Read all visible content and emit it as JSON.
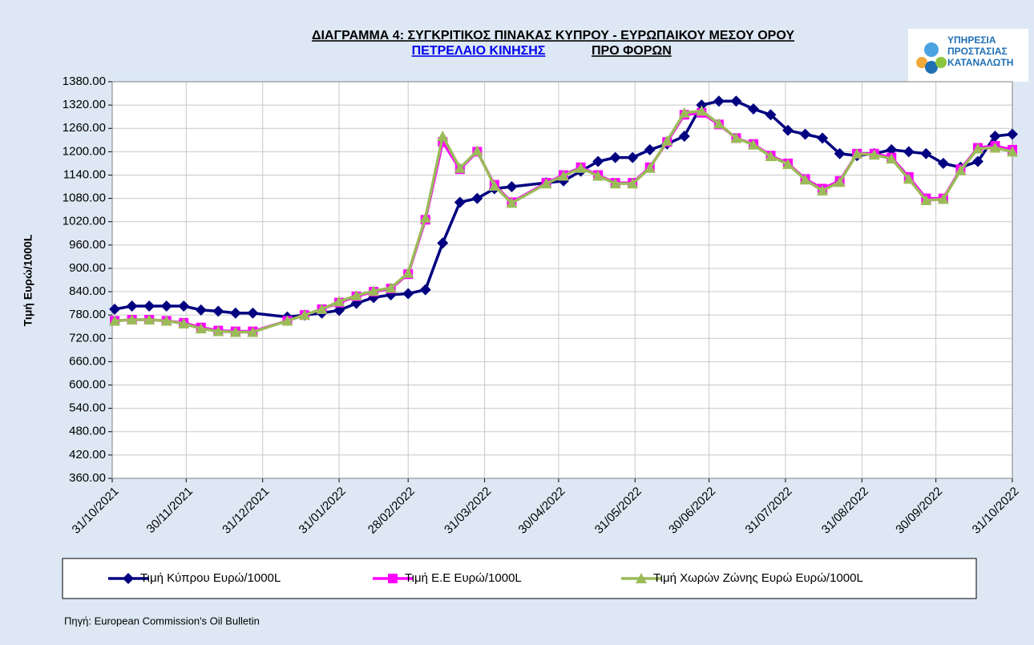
{
  "chart_data": {
    "type": "line",
    "title": "ΔΙΑΓΡΑΜΜΑ 4: ΣΥΓΚΡΙΤΙΚΟΣ ΠΙΝΑΚΑΣ ΚΥΠΡΟΥ - ΕΥΡΩΠΑΙΚΟΥ ΜΕΣΟΥ ΟΡΟΥ",
    "subtitle": [
      "ΠΕΤΡΕΛΑΙΟ ΚΙΝΗΣΗΣ",
      "ΠΡΟ ΦΟΡΩΝ"
    ],
    "ylabel": "Τιμή Ευρώ/1000L",
    "source": "Πηγή: European Commission's Oil Bulletin",
    "logo": [
      "ΥΠΗΡΕΣΙΑ",
      "ΠΡΟΣΤΑΣΙΑΣ",
      "ΚΑΤΑΝΑΛΩΤΗ"
    ],
    "x": [
      "01/11/2021",
      "08/11/2021",
      "15/11/2021",
      "22/11/2021",
      "29/11/2021",
      "06/12/2021",
      "13/12/2021",
      "20/12/2021",
      "27/12/2021",
      "10/01/2022",
      "17/01/2022",
      "24/01/2022",
      "31/01/2022",
      "07/02/2022",
      "14/02/2022",
      "21/02/2022",
      "28/02/2022",
      "07/03/2022",
      "14/03/2022",
      "21/03/2022",
      "28/03/2022",
      "04/04/2022",
      "11/04/2022",
      "25/04/2022",
      "02/05/2022",
      "09/05/2022",
      "16/05/2022",
      "23/05/2022",
      "30/05/2022",
      "06/06/2022",
      "13/06/2022",
      "20/06/2022",
      "27/06/2022",
      "04/07/2022",
      "11/07/2022",
      "18/07/2022",
      "25/07/2022",
      "01/08/2022",
      "08/08/2022",
      "15/08/2022",
      "22/08/2022",
      "29/08/2022",
      "05/09/2022",
      "12/09/2022",
      "19/09/2022",
      "26/09/2022",
      "03/10/2022",
      "10/10/2022",
      "17/10/2022",
      "24/10/2022",
      "31/10/2022"
    ],
    "series": [
      {
        "name": "Τιμή Κύπρου Ευρώ/1000L",
        "color": "#000080",
        "marker": "diamond",
        "values": [
          795,
          803,
          803,
          803,
          803,
          793,
          790,
          785,
          785,
          775,
          780,
          785,
          792,
          810,
          825,
          832,
          835,
          845,
          965,
          1070,
          1080,
          1105,
          1110,
          1120,
          1125,
          1150,
          1175,
          1185,
          1185,
          1205,
          1220,
          1240,
          1320,
          1330,
          1330,
          1310,
          1295,
          1255,
          1245,
          1235,
          1195,
          1190,
          1195,
          1205,
          1200,
          1195,
          1170,
          1160,
          1175,
          1240,
          1245
        ]
      },
      {
        "name": "Τιμή Ε.Ε Ευρώ/1000L",
        "color": "#ff00ff",
        "marker": "square",
        "values": [
          765,
          768,
          768,
          765,
          760,
          748,
          740,
          738,
          738,
          765,
          780,
          795,
          812,
          828,
          840,
          848,
          885,
          1025,
          1225,
          1155,
          1200,
          1115,
          1070,
          1120,
          1140,
          1160,
          1140,
          1120,
          1120,
          1160,
          1225,
          1295,
          1300,
          1270,
          1235,
          1220,
          1190,
          1170,
          1130,
          1105,
          1125,
          1195,
          1195,
          1185,
          1135,
          1080,
          1080,
          1155,
          1210,
          1215,
          1205
        ]
      },
      {
        "name": "Τιμή Χωρών Ζώνης Ευρώ Ευρώ/1000L",
        "color": "#9bbb59",
        "marker": "triangle",
        "values": [
          765,
          768,
          768,
          765,
          758,
          745,
          738,
          736,
          736,
          765,
          780,
          795,
          815,
          830,
          842,
          850,
          888,
          1030,
          1240,
          1158,
          1202,
          1112,
          1068,
          1118,
          1138,
          1158,
          1138,
          1118,
          1118,
          1158,
          1228,
          1300,
          1305,
          1272,
          1235,
          1218,
          1188,
          1168,
          1128,
          1100,
          1122,
          1195,
          1192,
          1182,
          1130,
          1075,
          1078,
          1152,
          1208,
          1210,
          1200
        ]
      }
    ],
    "xlim": [
      "31/10/2021",
      "31/10/2022"
    ],
    "xticks": [
      "31/10/2021",
      "30/11/2021",
      "31/12/2021",
      "31/01/2022",
      "28/02/2022",
      "31/03/2022",
      "30/04/2022",
      "31/05/2022",
      "30/06/2022",
      "31/07/2022",
      "31/08/2022",
      "30/09/2022",
      "31/10/2022"
    ],
    "ylim": [
      360,
      1380
    ],
    "yticks": [
      {
        "value": 360,
        "label": "360.00"
      },
      {
        "value": 420,
        "label": "420.00"
      },
      {
        "value": 480,
        "label": "480.00"
      },
      {
        "value": 540,
        "label": "540.00"
      },
      {
        "value": 600,
        "label": "600.00"
      },
      {
        "value": 660,
        "label": "660.00"
      },
      {
        "value": 720,
        "label": "720.00"
      },
      {
        "value": 780,
        "label": "780.00"
      },
      {
        "value": 840,
        "label": "840.00"
      },
      {
        "value": 900,
        "label": "900.00"
      },
      {
        "value": 960,
        "label": "960.00"
      },
      {
        "value": 1020,
        "label": "1020.00"
      },
      {
        "value": 1080,
        "label": "1080.00"
      },
      {
        "value": 1140,
        "label": "1140.00"
      },
      {
        "value": 1200,
        "label": "1200.00"
      },
      {
        "value": 1260,
        "label": "1260.00"
      },
      {
        "value": 1320,
        "label": "1320.00"
      },
      {
        "value": 1380,
        "label": "1380.00"
      }
    ],
    "grid": true,
    "legend": "bottom"
  }
}
